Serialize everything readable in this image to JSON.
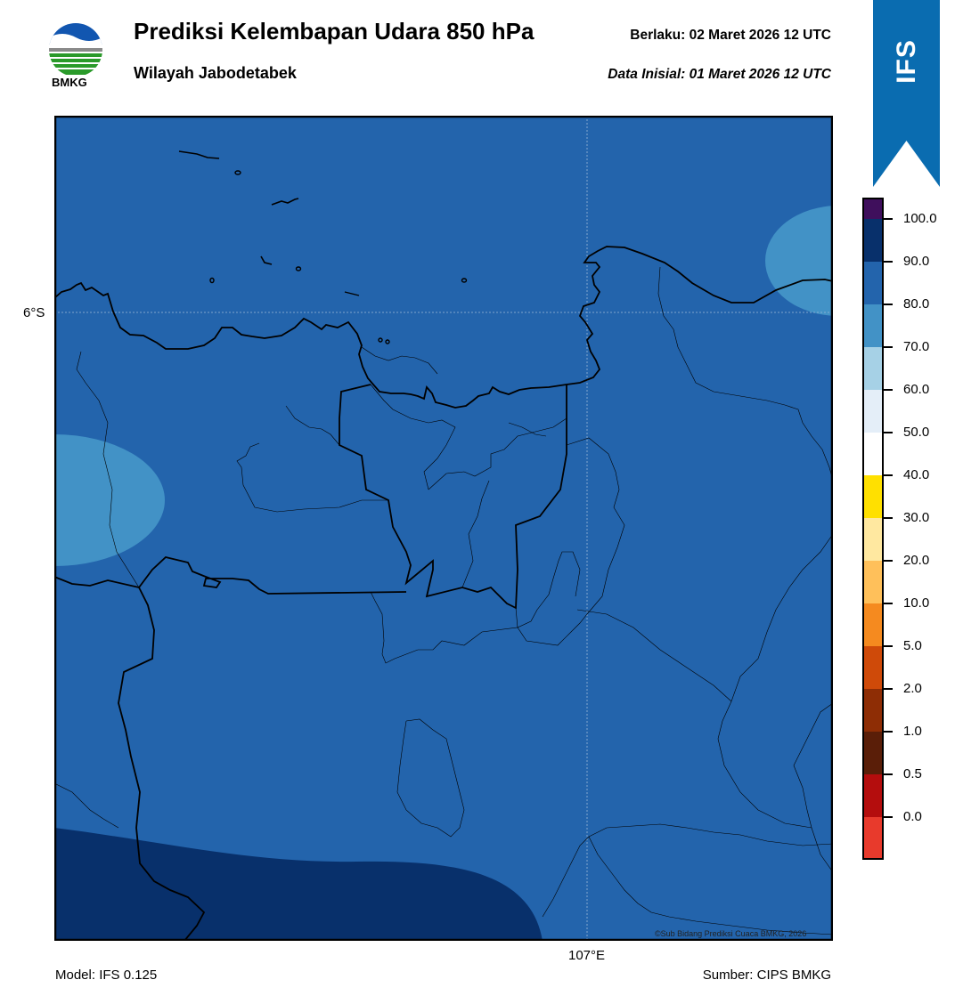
{
  "header": {
    "title": "Prediksi Kelembapan Udara 850 hPa",
    "subtitle": "Wilayah Jabodetabek",
    "valid_time": "Berlaku:  02 Maret 2026 12 UTC",
    "initial_time": "Data Inisial:  01 Maret 2026 12 UTC",
    "logo_text": "BMKG",
    "model_badge": "IFS"
  },
  "map": {
    "lat_label": "6°S",
    "lon_label": "107°E",
    "credit": "©Sub Bidang Prediksi Cuaca BMKG, 2026",
    "background_value_range": "80-90",
    "colors": {
      "humid_80_90": "#2364ac",
      "humid_70_80": "#4292c6",
      "humid_90_100": "#08306b",
      "coast": "#000000"
    }
  },
  "colorbar": {
    "labels": [
      "100.0",
      "90.0",
      "80.0",
      "70.0",
      "60.0",
      "50.0",
      "40.0",
      "30.0",
      "20.0",
      "10.0",
      "5.0",
      "2.0",
      "1.0",
      "0.5",
      "0.0"
    ],
    "colors_top_to_bottom": [
      "#3f0f5c",
      "#08306b",
      "#2364ac",
      "#4292c6",
      "#a6d1e6",
      "#e4eef8",
      "#ffffff",
      "#ffe000",
      "#ffe8a0",
      "#ffc05a",
      "#f58a1f",
      "#cf4a09",
      "#8e2d05",
      "#5a1e08",
      "#b40d0d",
      "#e83a2c"
    ]
  },
  "footer": {
    "model": "Model: IFS 0.125",
    "source": "Sumber: CIPS BMKG"
  }
}
